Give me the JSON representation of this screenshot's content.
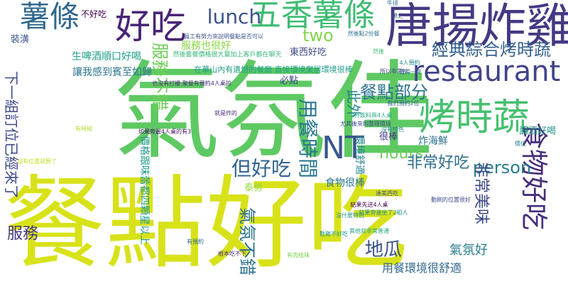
{
  "words": [
    {
      "text": "氣氛佳",
      "color": "#5ec962"
    },
    {
      "text": "餐點好吃",
      "color": "#d8e219"
    },
    {
      "text": "唐揚炸雞",
      "color": "#443983"
    },
    {
      "text": "五香薯條",
      "color": "#3fbc73"
    },
    {
      "text": "薯條",
      "color": "#31688e"
    },
    {
      "text": "好吃",
      "color": "#482475"
    },
    {
      "text": "restaurant",
      "color": "#414487"
    },
    {
      "text": "烤時蔬",
      "color": "#46c06f"
    },
    {
      "text": "NT",
      "color": "#39568c"
    },
    {
      "text": "食物好吃",
      "color": "#472d7b"
    },
    {
      "text": "lunch",
      "color": "#3b528b"
    },
    {
      "text": "經典綜合烤時蔬",
      "color": "#35608d"
    },
    {
      "text": "餐點部分",
      "color": "#2c728e"
    },
    {
      "text": "two",
      "color": "#84d44b"
    },
    {
      "text": "hours",
      "color": "#6ccd5a"
    },
    {
      "text": "person",
      "color": "#287d8e"
    },
    {
      "text": "用餐時間",
      "color": "#2a788e"
    },
    {
      "text": "此外",
      "color": "#26828e"
    },
    {
      "text": "但好吃",
      "color": "#32648e"
    },
    {
      "text": "非常好吃",
      "color": "#2e6e8e"
    },
    {
      "text": "氣氛不錯",
      "color": "#2c728e"
    },
    {
      "text": "服務不錯",
      "color": "#6ece58"
    },
    {
      "text": "非常美味",
      "color": "#3e4989"
    },
    {
      "text": "地瓜",
      "color": "#3a538b"
    },
    {
      "text": "服務",
      "color": "#453781"
    },
    {
      "text": "氣氛好",
      "color": "#287d8e"
    },
    {
      "text": "用餐環境很舒適",
      "color": "#31688e"
    },
    {
      "text": "下一組訂位已經來了",
      "color": "#3e4a89"
    },
    {
      "text": "價格跟味蕾都四顆星以上",
      "color": "#1f9a8a"
    },
    {
      "text": "讓我感到賓至如歸",
      "color": "#2a768e"
    },
    {
      "text": "生啤酒順口好喝",
      "color": "#1fa188"
    },
    {
      "text": "調酒好喝",
      "color": "#1f958b"
    },
    {
      "text": "東西好吃",
      "color": "#3e4989"
    },
    {
      "text": "必點",
      "color": "#3f4788"
    },
    {
      "text": "服務也很好",
      "color": "#8bd646"
    },
    {
      "text": "炸海鮮",
      "color": "#2d708e"
    },
    {
      "text": "很棒",
      "color": "#453882"
    },
    {
      "text": "食物很棒",
      "color": "#2a768e"
    },
    {
      "text": "環境舒適",
      "color": "#25858e"
    },
    {
      "text": "泰勞",
      "color": "#95d840"
    },
    {
      "text": "裝潢",
      "color": "#3b528b"
    },
    {
      "text": "不好吃",
      "color": "#440154"
    },
    {
      "text": "在華山內有遺憾的餐廳 直接環境聚居環境很棒",
      "color": "#1f9e89"
    },
    {
      "text": "然後套餐價格很大量加上客戶都在聊天",
      "color": "#35b779"
    },
    {
      "text": "4人預約",
      "color": "#26828e"
    },
    {
      "text": "所以非常吵",
      "color": "#414487"
    },
    {
      "text": "有時候",
      "color": "#b5de2b"
    },
    {
      "text": "員工有努力來說明餐點是否可以",
      "color": "#3b528b"
    },
    {
      "text": "也沒有打擾 聚餐有預約4人桌的",
      "color": "#472c7a"
    },
    {
      "text": "如果旁邊4人桌的有3",
      "color": "#481668"
    },
    {
      "text": "總之",
      "color": "#3a548c"
    },
    {
      "text": "牛排",
      "color": "#2e6f8e"
    },
    {
      "text": "然後點2份餐",
      "color": "#2a788e"
    },
    {
      "text": "2杯飲料與4人桌",
      "color": "#22a884"
    },
    {
      "text": "尤其後來則整理環境",
      "color": "#3e4a89"
    },
    {
      "text": "有預約",
      "color": "#31688e"
    },
    {
      "text": "就是炸的",
      "color": "#482878"
    },
    {
      "text": "根本吃不下",
      "color": "#46307e"
    },
    {
      "text": "有肉桂味",
      "color": "#7ad151"
    },
    {
      "text": "沒有位置就算了",
      "color": "#c2df23"
    },
    {
      "text": "數雞不好吃",
      "color": "#1f968b"
    },
    {
      "text": "結果先送4人桌",
      "color": "#440154"
    },
    {
      "text": "動刷的位置很好",
      "color": "#3d4d8a"
    },
    {
      "text": "結果旁邊坐了2組人",
      "color": "#228c8d"
    },
    {
      "text": "其他就非常普通",
      "color": "#20a486"
    },
    {
      "text": "然後",
      "color": "#3fbc73"
    },
    {
      "text": "沒什麼特別",
      "color": "#21918c"
    },
    {
      "text": "達美西吃",
      "color": "#3b528b"
    },
    {
      "text": "值得一來",
      "color": "#2f6c8e"
    },
    {
      "text": "價位",
      "color": "#24878e"
    },
    {
      "text": "沒有特色",
      "color": "#26818e"
    },
    {
      "text": "我們預約2位",
      "color": "#35608d"
    }
  ]
}
